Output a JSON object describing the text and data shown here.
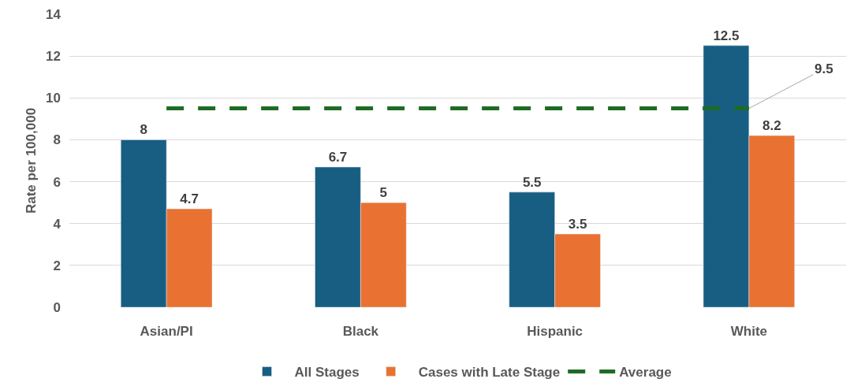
{
  "chart_data": {
    "type": "bar",
    "ylabel": "Rate per 100,000",
    "categories": [
      "Asian/PI",
      "Black",
      "Hispanic",
      "White"
    ],
    "series": [
      {
        "name": "All Stages",
        "color": "#175e82",
        "values": [
          8,
          6.7,
          5.5,
          12.5
        ],
        "value_labels": [
          "8",
          "6.7",
          "5.5",
          "12.5"
        ]
      },
      {
        "name": "Cases with Late Stage",
        "color": "#e97132",
        "values": [
          4.7,
          5,
          3.5,
          8.2
        ],
        "value_labels": [
          "4.7",
          "5",
          "3.5",
          "8.2"
        ]
      },
      {
        "name": "Average",
        "type": "line",
        "color": "#1e6b24",
        "line_style": "dashed",
        "values": [
          9.5,
          9.5,
          9.5,
          9.5
        ],
        "value_labels": [
          null,
          null,
          null,
          "9.5"
        ]
      }
    ],
    "ylim": [
      0,
      14
    ],
    "yticks": [
      0,
      2,
      4,
      6,
      8,
      10,
      12,
      14
    ],
    "grid": "y",
    "legend": "bottom"
  }
}
